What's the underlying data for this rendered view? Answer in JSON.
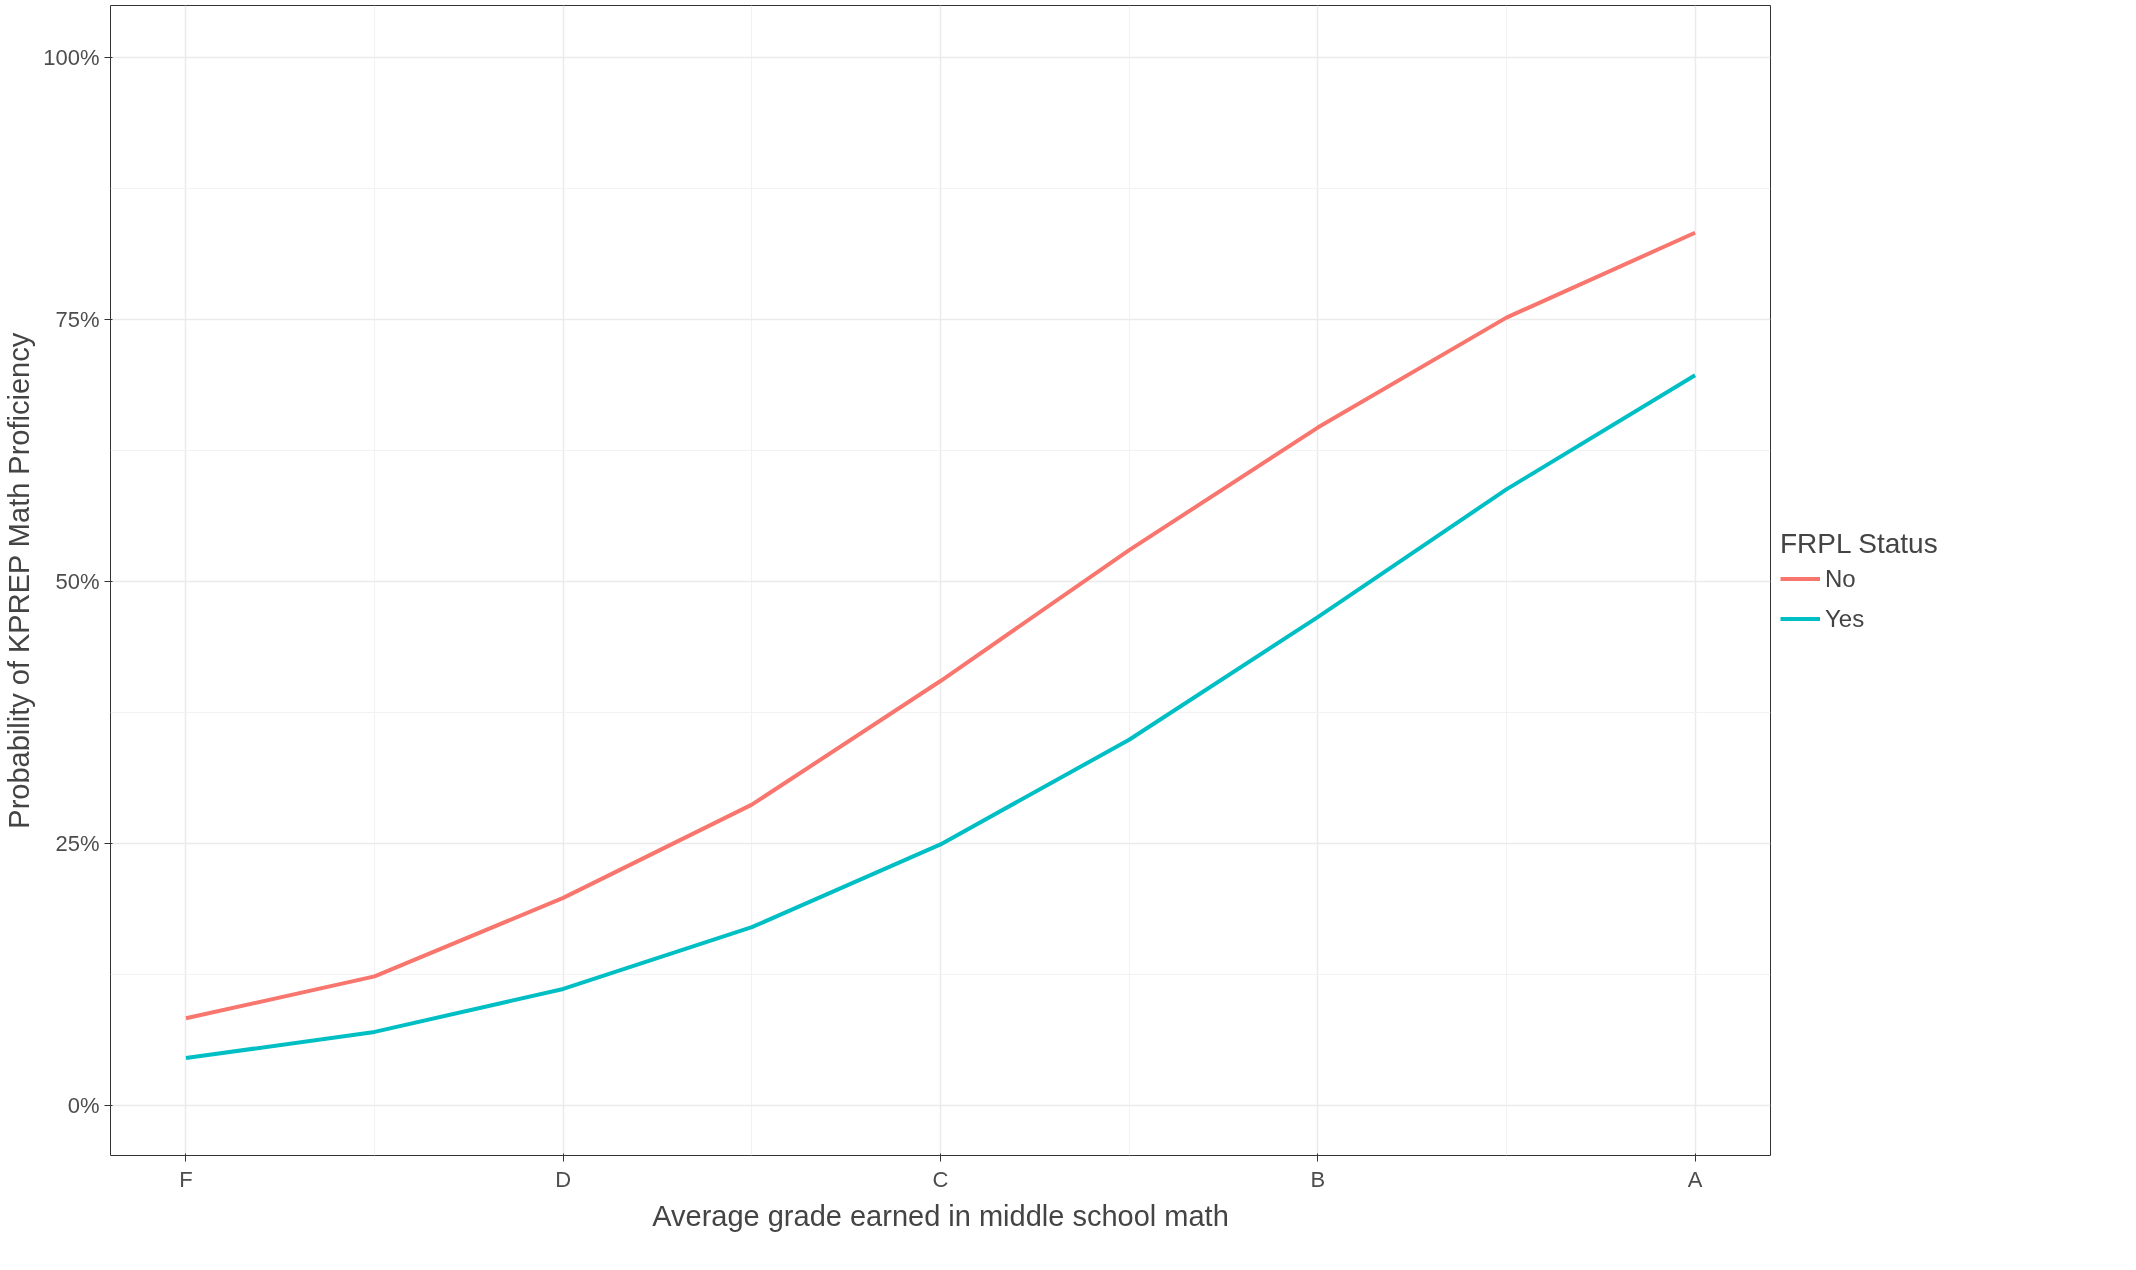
{
  "chart_data": {
    "type": "line",
    "xlabel": "Average grade earned in middle school math",
    "ylabel": "Probability of KPREP Math Proficiency",
    "legend_title": "FRPL Status",
    "categories": [
      "F",
      null,
      "D",
      null,
      "C",
      null,
      "B",
      null,
      "A"
    ],
    "series": [
      {
        "name": "No",
        "color": "#f8766d",
        "values": [
          8.3,
          12.3,
          19.8,
          28.7,
          40.5,
          53,
          64.7,
          75.2,
          83.3
        ]
      },
      {
        "name": "Yes",
        "color": "#00bfc4",
        "values": [
          4.5,
          7,
          11.1,
          17,
          24.9,
          34.9,
          46.6,
          58.8,
          69.7
        ]
      }
    ],
    "ylim": [
      -4.8,
      105
    ],
    "yticks": [
      {
        "value": 0,
        "label": "0%"
      },
      {
        "value": 25,
        "label": "25%"
      },
      {
        "value": 50,
        "label": "50%"
      },
      {
        "value": 75,
        "label": "75%"
      },
      {
        "value": 100,
        "label": "100%"
      }
    ],
    "grid": true,
    "legend": "right",
    "marker": "none",
    "line_style": "solid"
  }
}
